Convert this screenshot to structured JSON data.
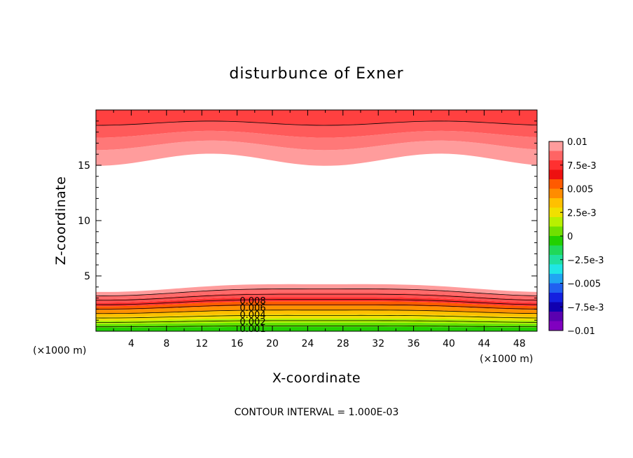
{
  "chart_data": {
    "type": "heatmap",
    "title": "disturbunce of Exner",
    "xlabel": "X-coordinate",
    "ylabel": "Z-coordinate",
    "x_unit_left": "(×1000 m)",
    "x_unit_right": "(×1000 m)",
    "x_range": [
      0,
      50
    ],
    "y_range": [
      0,
      20
    ],
    "x_ticks": [
      "4",
      "8",
      "12",
      "16",
      "20",
      "24",
      "28",
      "32",
      "36",
      "40",
      "44",
      "48"
    ],
    "y_ticks": [
      "5",
      "10",
      "15"
    ],
    "colorbar": {
      "range": [
        -0.01,
        0.01
      ],
      "labels": [
        "0.01",
        "7.5e-3",
        "0.005",
        "2.5e-3",
        "0",
        "−2.5e-3",
        "−0.005",
        "−7.5e-3",
        "−0.01"
      ],
      "colors": [
        "#ff9c9c",
        "#ff6464",
        "#ff3030",
        "#ee1010",
        "#ff5a00",
        "#ff8c00",
        "#ffc000",
        "#f0e000",
        "#b8f000",
        "#70e000",
        "#22d000",
        "#20d85a",
        "#20e0a0",
        "#20e6e6",
        "#20a6f2",
        "#2060f0",
        "#1420e0",
        "#1000b0",
        "#5a00b0",
        "#8000c0"
      ]
    },
    "contour_labels": [
      "0.008",
      "0.006",
      "0.004",
      "0.002",
      "0.001"
    ],
    "contour_interval_text": "CONTOUR INTERVAL = 1.000E-03",
    "description_fields": {
      "lower_band_top_km": 4.0,
      "upper_band_bottom_km": 15.5,
      "field_min_shown": 0,
      "field_max_shown": 0.01
    }
  }
}
